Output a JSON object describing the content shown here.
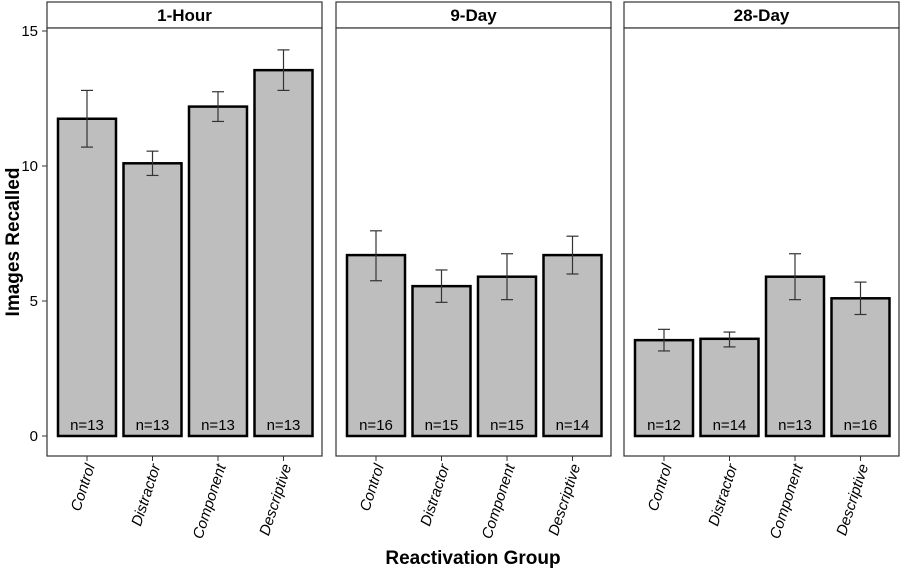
{
  "chart_data": {
    "type": "bar",
    "xlabel": "Reactivation Group",
    "ylabel": "Images Recalled",
    "ylim": [
      0,
      15
    ],
    "yticks": [
      0,
      5,
      10,
      15
    ],
    "categories": [
      "Control",
      "Distractor",
      "Component",
      "Descriptive"
    ],
    "panels": [
      {
        "title": "1-Hour",
        "values": [
          11.75,
          10.1,
          12.2,
          13.55
        ],
        "err_low": [
          10.7,
          9.65,
          11.65,
          12.8
        ],
        "err_high": [
          12.8,
          10.55,
          12.75,
          14.3
        ],
        "n_labels": [
          "n=13",
          "n=13",
          "n=13",
          "n=13"
        ]
      },
      {
        "title": "9-Day",
        "values": [
          6.7,
          5.55,
          5.9,
          6.7
        ],
        "err_low": [
          5.75,
          4.95,
          5.05,
          6.0
        ],
        "err_high": [
          7.6,
          6.15,
          6.75,
          7.4
        ],
        "n_labels": [
          "n=16",
          "n=15",
          "n=15",
          "n=14"
        ]
      },
      {
        "title": "28-Day",
        "values": [
          3.55,
          3.6,
          5.9,
          5.1
        ],
        "err_low": [
          3.15,
          3.3,
          5.05,
          4.5
        ],
        "err_high": [
          3.95,
          3.85,
          6.75,
          5.7
        ],
        "n_labels": [
          "n=12",
          "n=14",
          "n=13",
          "n=16"
        ]
      }
    ],
    "grid": false,
    "legend": "none"
  }
}
